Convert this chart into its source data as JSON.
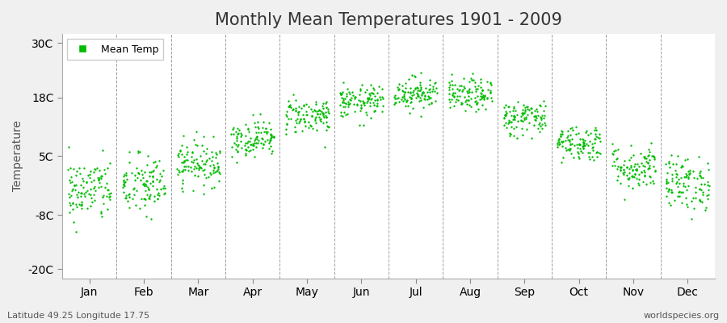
{
  "title": "Monthly Mean Temperatures 1901 - 2009",
  "ylabel": "Temperature",
  "yticks": [
    -20,
    -8,
    5,
    18,
    30
  ],
  "ytick_labels": [
    "-20C",
    "-8C",
    "5C",
    "18C",
    "30C"
  ],
  "ylim": [
    -22,
    32
  ],
  "months": [
    "Jan",
    "Feb",
    "Mar",
    "Apr",
    "May",
    "Jun",
    "Jul",
    "Aug",
    "Sep",
    "Oct",
    "Nov",
    "Dec"
  ],
  "month_means": [
    -2.5,
    -1.5,
    3.5,
    9.0,
    14.0,
    17.0,
    19.0,
    18.5,
    13.5,
    8.0,
    2.5,
    -1.0
  ],
  "month_stds": [
    3.5,
    3.5,
    2.5,
    2.0,
    2.0,
    1.8,
    1.8,
    1.8,
    2.0,
    2.0,
    2.5,
    3.0
  ],
  "n_years": 109,
  "dot_color": "#00bb00",
  "dot_size": 3,
  "figure_bg_color": "#f0f0f0",
  "plot_bg_color": "#ffffff",
  "legend_label": "Mean Temp",
  "title_fontsize": 15,
  "axis_fontsize": 10,
  "tick_fontsize": 10,
  "footnote_left": "Latitude 49.25 Longitude 17.75",
  "footnote_right": "worldspecies.org"
}
